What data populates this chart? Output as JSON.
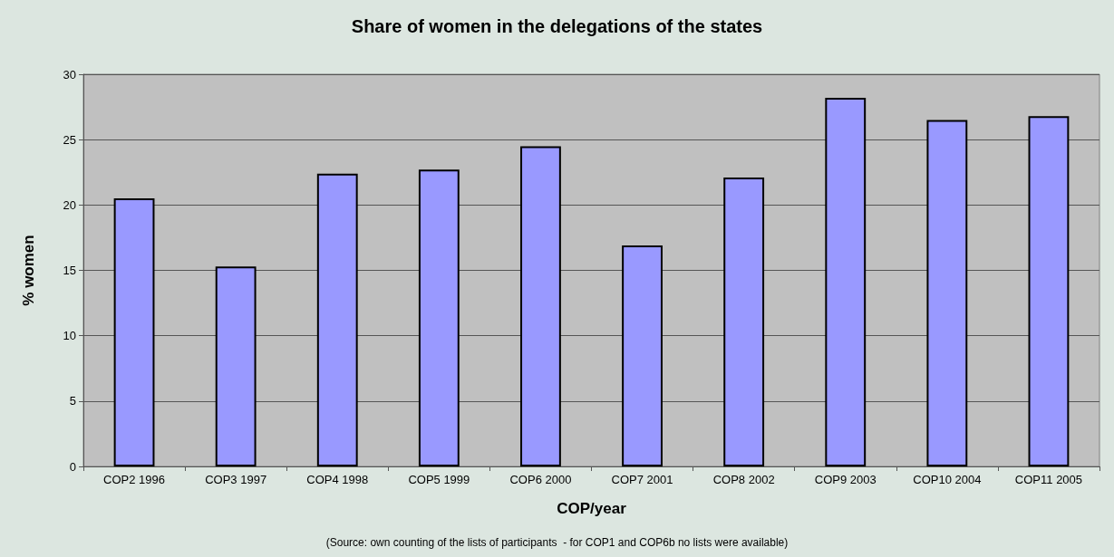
{
  "chart_data": {
    "type": "bar",
    "title": "Share of women in the delegations of the states",
    "xlabel": "COP/year",
    "ylabel": "% women",
    "annotations": [
      "(Source: own counting of the lists of participants  - for COP1 and COP6b no lists were available)"
    ],
    "categories": [
      "COP2 1996",
      "COP3 1997",
      "COP4 1998",
      "COP5 1999",
      "COP6 2000",
      "COP7 2001",
      "COP8 2002",
      "COP9 2003",
      "COP10 2004",
      "COP11 2005"
    ],
    "values": [
      20.5,
      15.3,
      22.4,
      22.7,
      24.5,
      16.9,
      22.1,
      28.2,
      26.5,
      26.8
    ],
    "color": "#9999ff",
    "ylim": [
      0,
      30
    ],
    "yticks": [
      0,
      5,
      10,
      15,
      20,
      25,
      30
    ],
    "grid": "y"
  }
}
